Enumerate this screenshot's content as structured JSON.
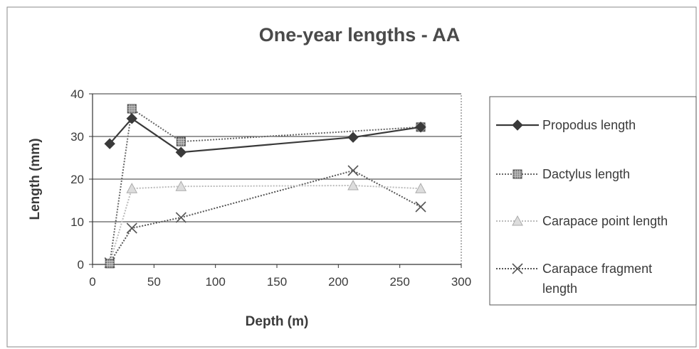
{
  "chart_data": {
    "type": "line",
    "title": "One-year lengths - AA",
    "xlabel": "Depth (m)",
    "ylabel": "Length (mm)",
    "xlim": [
      0,
      300
    ],
    "ylim": [
      0,
      40
    ],
    "x_ticks": [
      0,
      50,
      100,
      150,
      200,
      250,
      300
    ],
    "y_ticks": [
      0,
      10,
      20,
      30,
      40
    ],
    "grid": "horizontal major gridlines",
    "legend_position": "right",
    "series": [
      {
        "name": "Propodus length",
        "color": "#3a3a3a",
        "line_style": "solid",
        "marker": "diamond",
        "points": [
          [
            14,
            28.3
          ],
          [
            32,
            34.2
          ],
          [
            72,
            26.3
          ],
          [
            212,
            29.8
          ],
          [
            267,
            32.2
          ]
        ]
      },
      {
        "name": "Dactylus length",
        "color": "#666666",
        "line_style": "dotted",
        "marker": "hatched-square",
        "points": [
          [
            14,
            0.2
          ],
          [
            32,
            36.5
          ],
          [
            72,
            28.8
          ],
          [
            267,
            32.2
          ]
        ]
      },
      {
        "name": "Carapace point length",
        "color": "#bbbbbb",
        "line_style": "dotted",
        "marker": "triangle",
        "points": [
          [
            14,
            0.3
          ],
          [
            32,
            17.8
          ],
          [
            72,
            18.3
          ],
          [
            212,
            18.5
          ],
          [
            267,
            17.8
          ]
        ]
      },
      {
        "name": "Carapace fragment length",
        "color": "#555555",
        "line_style": "dotted",
        "marker": "x",
        "points": [
          [
            14,
            0.4
          ],
          [
            32,
            8.5
          ],
          [
            72,
            11.0
          ],
          [
            212,
            22.0
          ],
          [
            267,
            13.5
          ]
        ]
      }
    ]
  }
}
